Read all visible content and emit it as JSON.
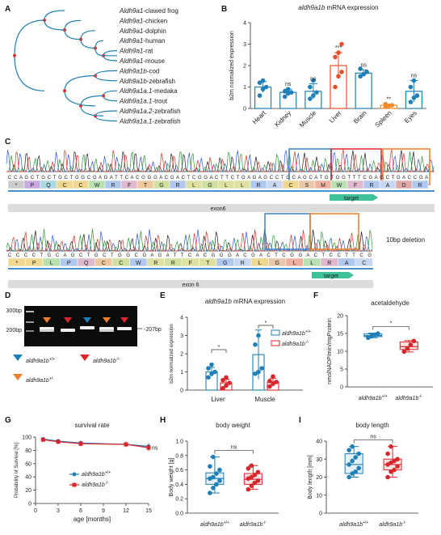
{
  "panels": {
    "A": {
      "label": "A",
      "species": [
        {
          "gene": "Aldh9a1",
          "sp": "-clawed frog"
        },
        {
          "gene": "Aldh9a1",
          "sp": "-chicken"
        },
        {
          "gene": "Aldh9a1",
          "sp": "-dolphin"
        },
        {
          "gene": "Aldh9a1",
          "sp": "-human"
        },
        {
          "gene": "Aldh9a1",
          "sp": "-rat"
        },
        {
          "gene": "Aldh9a1",
          "sp": "-mouse"
        },
        {
          "gene": "Aldh9a1b",
          "sp": "-cod"
        },
        {
          "gene": "Aldh9a1b",
          "sp": "-zebrafish",
          "highlight": true
        },
        {
          "gene": "Aldh9a1a.1",
          "sp": "-medaka"
        },
        {
          "gene": "Aldh9a1a.1",
          "sp": "-trout"
        },
        {
          "gene": "Aldh9a1a.2",
          "sp": "-zebrafish"
        },
        {
          "gene": "Aldh9a1a.1",
          "sp": "-zebrafish"
        }
      ]
    },
    "B": {
      "label": "B",
      "chart_data": {
        "type": "bar",
        "title_gene": "aldh9a1b",
        "title_rest": " mRNA expression",
        "ylabel": "b2m normalized expression",
        "ylim": [
          0,
          4
        ],
        "yticks": [
          "0",
          "1",
          "2",
          "3",
          "4"
        ],
        "categories": [
          "Heart",
          "Kidney",
          "Muscle",
          "Liver",
          "Brain",
          "Spleen",
          "Eyes"
        ],
        "values": [
          1.0,
          0.75,
          0.8,
          2.0,
          1.65,
          0.15,
          0.8
        ],
        "errors": [
          0.25,
          0.15,
          0.35,
          0.6,
          0.15,
          0.05,
          0.5
        ],
        "points": [
          [
            0.6,
            0.9,
            1.0,
            1.2,
            1.3
          ],
          [
            0.55,
            0.7,
            0.75,
            0.8,
            0.9
          ],
          [
            0.45,
            0.6,
            0.75,
            1.0,
            1.3
          ],
          [
            1.0,
            1.5,
            1.7,
            2.4,
            2.6,
            3.0
          ],
          [
            1.5,
            1.6,
            1.7,
            1.85
          ],
          [
            0.08,
            0.12,
            0.15,
            0.2
          ],
          [
            0.3,
            0.5,
            0.6,
            1.0,
            1.3
          ]
        ],
        "significance": [
          "",
          "ns",
          "ns",
          "***",
          "ns",
          "**",
          "ns"
        ],
        "colors": {
          "default": "#1f7fb8",
          "liver": "#e8502a",
          "spleen": "#f08a2a"
        }
      }
    },
    "C": {
      "label": "C",
      "aa_top": [
        "*",
        "P",
        "Q",
        "C",
        "C",
        "W",
        "R",
        "F",
        "T",
        "G",
        "R",
        "L",
        "G",
        "L",
        "L",
        "R",
        "A",
        "C",
        "S",
        "M",
        "W",
        "F",
        "R",
        "A",
        "D",
        "R"
      ],
      "aa_bottom": [
        "*",
        "P",
        "L",
        "P",
        "Q",
        "C",
        "C",
        "W",
        "R",
        "R",
        "F",
        "T",
        "G",
        "R",
        "L",
        "G",
        "L",
        "L",
        "R",
        "A",
        "C"
      ],
      "target_label": "target",
      "exon_top": "exon6",
      "exon_bottom": "exon 6",
      "deletion_label": "10bp deletion"
    },
    "D": {
      "label": "D",
      "marker_300": "300bp",
      "marker_200": "200bp",
      "band_label": "207bp",
      "legend": [
        {
          "gene": "aldh9a1b",
          "sup": "+/+",
          "color": "#1f7fb8"
        },
        {
          "gene": "aldh9a1b",
          "sup": "-/-",
          "color": "#d9262c"
        },
        {
          "gene": "aldh9a1b",
          "sup": "+/-",
          "color": "#ef7d28"
        }
      ]
    },
    "E": {
      "label": "E",
      "chart_data": {
        "type": "bar",
        "title_gene": "aldh9a1b",
        "title_rest": " mRNA expression",
        "ylabel": "b2m normalized expression",
        "ylim": [
          0,
          4
        ],
        "yticks": [
          "0",
          "1",
          "2",
          "3",
          "4"
        ],
        "categories": [
          "Liver",
          "Muscle"
        ],
        "series": [
          {
            "name": "aldh9a1b +/+",
            "values": [
              1.0,
              1.95
            ],
            "errors": [
              0.25,
              1.35
            ],
            "points": [
              [
                0.7,
                0.9,
                1.0,
                1.2,
                1.4
              ],
              [
                0.9,
                1.0,
                1.2,
                2.5,
                3.0
              ]
            ],
            "color": "#1f7fb8"
          },
          {
            "name": "aldh9a1b -/-",
            "values": [
              0.4,
              0.45
            ],
            "errors": [
              0.2,
              0.2
            ],
            "points": [
              [
                0.1,
                0.25,
                0.4,
                0.55,
                0.7
              ],
              [
                0.2,
                0.35,
                0.45,
                0.5,
                0.75
              ]
            ],
            "color": "#d9262c"
          }
        ],
        "significance": [
          "*",
          "*"
        ],
        "legend": [
          {
            "gene": "aldh9a1b",
            "sup": "+/+"
          },
          {
            "gene": "aldh9a1b",
            "sup": "-/-"
          }
        ]
      }
    },
    "F": {
      "label": "F",
      "chart_data": {
        "type": "box",
        "title": "acetaldehyde",
        "ylabel": "nmolNADP/min/mgProtein",
        "ylim": [
          0,
          20
        ],
        "yticks": [
          "0",
          "5",
          "10",
          "15",
          "20"
        ],
        "categories": [
          {
            "gene": "aldh9a1b",
            "sup": "+/+"
          },
          {
            "gene": "aldh9a1b",
            "sup": "-/-"
          }
        ],
        "boxes": [
          {
            "min": 13.8,
            "q1": 14.1,
            "median": 14.4,
            "q3": 14.9,
            "max": 15.1,
            "points": [
              13.8,
              14.2,
              14.6,
              15.0
            ],
            "color": "#1f7fb8"
          },
          {
            "min": 9.8,
            "q1": 10.5,
            "median": 11.3,
            "q3": 12.6,
            "max": 13.0,
            "points": [
              9.9,
              10.8,
              11.8,
              12.9
            ],
            "color": "#d9262c"
          }
        ],
        "significance": "*"
      }
    },
    "G": {
      "label": "G",
      "chart_data": {
        "type": "line",
        "title": "survival rate",
        "xlabel": "age [months]",
        "ylabel": "Probability of Survival [%]",
        "xlim": [
          0,
          15
        ],
        "ylim": [
          0,
          100
        ],
        "xticks": [
          "0",
          "3",
          "6",
          "9",
          "12",
          "15"
        ],
        "yticks": [
          "0",
          "20",
          "40",
          "60",
          "80",
          "100"
        ],
        "x": [
          1,
          3,
          6,
          12,
          15
        ],
        "series": [
          {
            "name": "aldh9a1b +/+",
            "values": [
              97,
              94,
              91,
              89,
              86
            ],
            "errors": [
              2,
              3,
              4,
              4,
              5
            ],
            "color": "#1f7fb8"
          },
          {
            "name": "aldh9a1b -/-",
            "values": [
              96,
              93,
              90,
              89,
              84
            ],
            "errors": [
              2,
              3,
              4,
              4,
              5
            ],
            "color": "#d9262c"
          }
        ],
        "significance": "ns",
        "legend": [
          {
            "gene": "aldh9a1b",
            "sup": "+/+"
          },
          {
            "gene": "aldh9a1b",
            "sup": "-/-"
          }
        ]
      }
    },
    "H": {
      "label": "H",
      "chart_data": {
        "type": "box",
        "title": "body weight",
        "ylabel": "Body weight [g]",
        "ylim": [
          0,
          1.0
        ],
        "yticks": [
          "0.0",
          "0.2",
          "0.4",
          "0.6",
          "0.8",
          "1.0"
        ],
        "categories": [
          {
            "gene": "aldh9a1b",
            "sup": "+/+"
          },
          {
            "gene": "aldh9a1b",
            "sup": "-/-"
          }
        ],
        "boxes": [
          {
            "min": 0.28,
            "q1": 0.4,
            "median": 0.48,
            "q3": 0.56,
            "max": 0.78,
            "points": [
              0.28,
              0.35,
              0.4,
              0.45,
              0.48,
              0.5,
              0.55,
              0.6,
              0.65,
              0.78
            ],
            "color": "#1f7fb8"
          },
          {
            "min": 0.33,
            "q1": 0.4,
            "median": 0.47,
            "q3": 0.55,
            "max": 0.66,
            "points": [
              0.33,
              0.38,
              0.42,
              0.45,
              0.48,
              0.5,
              0.53,
              0.57,
              0.62,
              0.66
            ],
            "color": "#d9262c"
          }
        ],
        "significance": "ns"
      }
    },
    "I": {
      "label": "I",
      "chart_data": {
        "type": "box",
        "title": "body length",
        "ylabel": "Body length [mm]",
        "ylim": [
          0,
          40
        ],
        "yticks": [
          "0",
          "10",
          "20",
          "30",
          "40"
        ],
        "categories": [
          {
            "gene": "aldh9a1b",
            "sup": "+/+"
          },
          {
            "gene": "aldh9a1b",
            "sup": "-/-"
          }
        ],
        "boxes": [
          {
            "min": 20,
            "q1": 22,
            "median": 27,
            "q3": 33,
            "max": 37,
            "points": [
              20,
              22,
              23,
              25,
              27,
              29,
              31,
              33,
              35,
              37
            ],
            "color": "#1f7fb8"
          },
          {
            "min": 20,
            "q1": 24,
            "median": 27,
            "q3": 30,
            "max": 37,
            "points": [
              20,
              23,
              24,
              26,
              27,
              28,
              29,
              30,
              33,
              37
            ],
            "color": "#d9262c"
          }
        ],
        "significance": "ns"
      }
    }
  }
}
